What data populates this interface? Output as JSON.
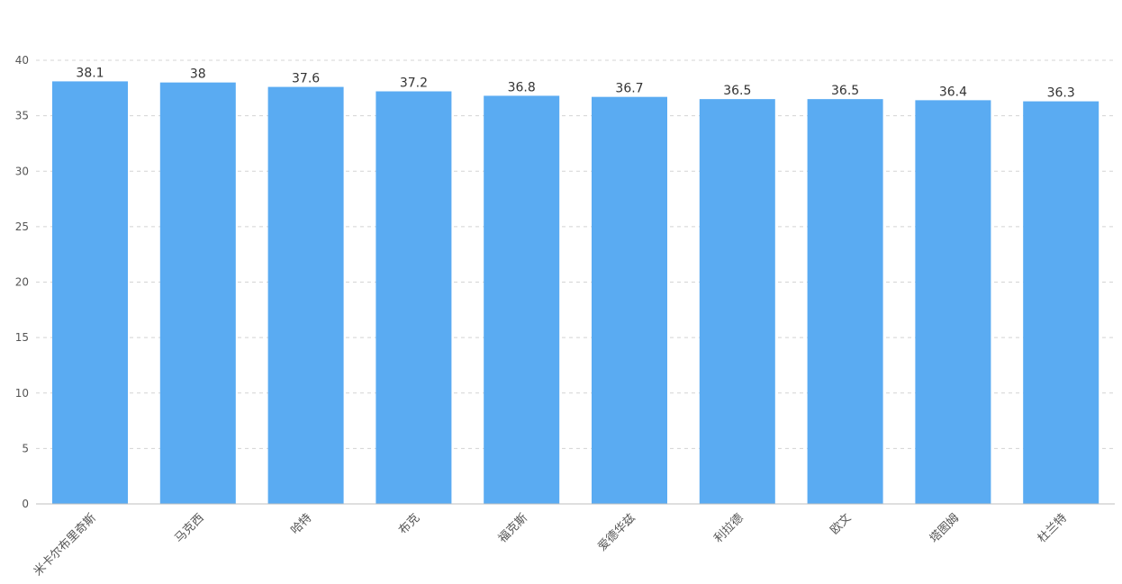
{
  "chart_data": {
    "type": "bar",
    "categories": [
      "米卡尔布里奇斯",
      "马克西",
      "哈特",
      "布克",
      "福克斯",
      "爱德华兹",
      "利拉德",
      "欧文",
      "塔图姆",
      "杜兰特"
    ],
    "values": [
      38.1,
      38,
      37.6,
      37.2,
      36.8,
      36.7,
      36.5,
      36.5,
      36.4,
      36.3
    ],
    "value_labels": [
      "38.1",
      "38",
      "37.6",
      "37.2",
      "36.8",
      "36.7",
      "36.5",
      "36.5",
      "36.4",
      "36.3"
    ],
    "title": "",
    "xlabel": "",
    "ylabel": "",
    "ylim": [
      0,
      40
    ],
    "yticks": [
      "0",
      "5",
      "10",
      "15",
      "20",
      "25",
      "30",
      "35",
      "40"
    ],
    "grid": true,
    "bar_color": "#5aabf2"
  }
}
